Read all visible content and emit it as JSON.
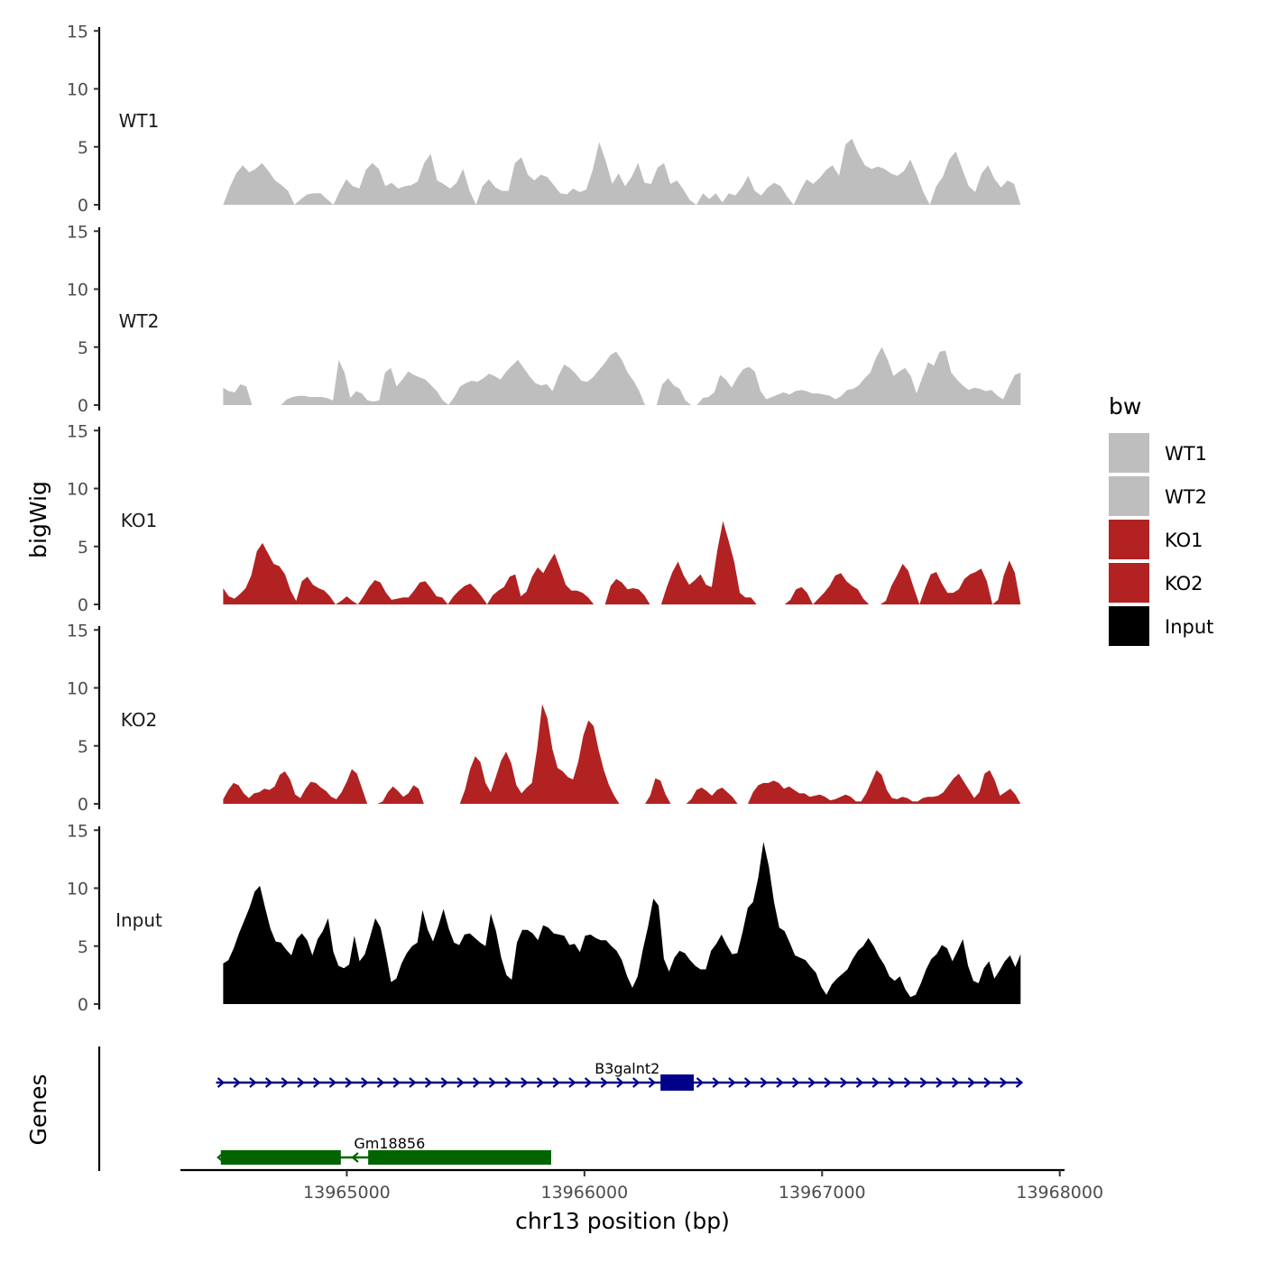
{
  "chart_data": {
    "type": "area",
    "xlabel": "chr13 position (bp)",
    "ylabel_tracks": "bigWig",
    "ylabel_genes": "Genes",
    "xlim": [
      13964300,
      13968020
    ],
    "xticks": [
      13965000,
      13966000,
      13967000,
      13968000
    ],
    "xtick_labels": [
      "13965000",
      "13966000",
      "13967000",
      "13968000"
    ],
    "ylim": [
      0,
      15
    ],
    "yticks": [
      0,
      5,
      10,
      15
    ],
    "ytick_labels": [
      "0",
      "5",
      "10",
      "15"
    ],
    "track_x_start": 13964480,
    "track_x_end": 13967835,
    "legend": {
      "title": "bw",
      "entries": [
        {
          "name": "WT1",
          "color": "#bebebe"
        },
        {
          "name": "WT2",
          "color": "#bebebe"
        },
        {
          "name": "KO1",
          "color": "#b22222"
        },
        {
          "name": "KO2",
          "color": "#b22222"
        },
        {
          "name": "Input",
          "color": "#000000"
        }
      ]
    },
    "series": [
      {
        "name": "WT1",
        "color": "#bebebe",
        "values": [
          0,
          1.5,
          2.7,
          3.4,
          2.8,
          3.1,
          3.6,
          2.9,
          2.1,
          1.7,
          1.2,
          0,
          0.5,
          0.9,
          1.0,
          1.0,
          0.5,
          0,
          1.2,
          2.2,
          1.6,
          1.4,
          3.0,
          3.6,
          3.1,
          1.6,
          1.9,
          1.4,
          1.6,
          1.7,
          2.0,
          3.6,
          4.4,
          2.1,
          1.8,
          1.4,
          1.9,
          3.1,
          1.2,
          0,
          1.6,
          2.2,
          1.5,
          1.2,
          1.2,
          3.6,
          4.1,
          2.6,
          2.1,
          2.6,
          2.4,
          1.7,
          1.0,
          0.9,
          1.4,
          1.1,
          1.3,
          3.0,
          5.4,
          3.8,
          1.8,
          2.7,
          1.6,
          2.4,
          3.6,
          1.9,
          1.8,
          3.2,
          3.6,
          1.8,
          2.1,
          1.3,
          0.4,
          0,
          1.0,
          0.5,
          1.0,
          0.2,
          1.0,
          0.8,
          1.5,
          2.5,
          1.2,
          0.8,
          1.5,
          1.9,
          1.6,
          0.7,
          0,
          1.2,
          2.2,
          1.8,
          2.3,
          3.0,
          3.4,
          2.5,
          5.2,
          5.7,
          4.4,
          3.4,
          3.1,
          3.3,
          3.1,
          2.7,
          2.5,
          2.9,
          3.9,
          2.6,
          1.1,
          0,
          1.6,
          2.4,
          3.9,
          4.6,
          3.1,
          1.6,
          1.1,
          2.7,
          3.4,
          2.2,
          1.5,
          2.1,
          1.8,
          0
        ]
      },
      {
        "name": "WT2",
        "color": "#bebebe",
        "values": [
          1.5,
          1.2,
          1.1,
          1.8,
          1.6,
          0,
          0,
          0,
          0,
          0,
          0,
          0.5,
          0.7,
          0.8,
          0.8,
          0.7,
          0.7,
          0.7,
          0.6,
          0.4,
          3.9,
          2.8,
          0.6,
          1.2,
          1.0,
          0.4,
          0.3,
          0.4,
          2.8,
          3.2,
          1.6,
          2.2,
          2.9,
          2.6,
          2.4,
          2.2,
          1.7,
          1.2,
          0.4,
          0,
          0.7,
          1.6,
          1.9,
          2.1,
          2.0,
          2.3,
          2.7,
          2.5,
          2.2,
          2.9,
          3.4,
          3.9,
          3.2,
          2.5,
          1.9,
          1.7,
          1.8,
          1.2,
          2.5,
          3.5,
          3.2,
          2.7,
          2.1,
          2.0,
          2.4,
          3.0,
          3.6,
          4.3,
          4.6,
          3.9,
          2.8,
          2.1,
          1.2,
          0,
          0,
          0,
          1.8,
          2.3,
          1.7,
          1.4,
          0.4,
          0,
          0,
          0.6,
          0.7,
          1.1,
          2.6,
          2.2,
          1.5,
          2.4,
          3.1,
          3.3,
          2.9,
          1.2,
          0.5,
          0.7,
          0.9,
          1.1,
          0.9,
          1.2,
          1.3,
          1.2,
          1.0,
          1.0,
          0.9,
          0.8,
          0.5,
          0.8,
          1.3,
          1.4,
          1.7,
          2.3,
          2.8,
          4.1,
          5.0,
          3.9,
          2.5,
          2.9,
          3.2,
          2.5,
          1.0,
          2.4,
          3.7,
          3.4,
          4.6,
          4.7,
          2.8,
          2.2,
          1.7,
          1.3,
          1.5,
          1.4,
          1.2,
          1.3,
          0.8,
          0.5,
          1.6,
          2.6,
          2.8
        ]
      },
      {
        "name": "KO1",
        "color": "#b22222",
        "values": [
          1.4,
          0.7,
          0.5,
          0.9,
          1.4,
          2.5,
          4.6,
          5.3,
          4.4,
          3.5,
          3.3,
          2.6,
          1.2,
          0.3,
          2.0,
          2.4,
          1.7,
          1.4,
          1.2,
          0.7,
          0,
          0.3,
          0.7,
          0.3,
          0,
          0.7,
          1.5,
          2.1,
          1.9,
          1.0,
          0.4,
          0.5,
          0.6,
          0.6,
          1.2,
          1.9,
          2.0,
          1.4,
          0.7,
          0.6,
          0,
          0.7,
          1.2,
          1.6,
          1.8,
          1.3,
          0.7,
          0,
          0.8,
          1.2,
          1.5,
          2.4,
          2.6,
          0.7,
          1.1,
          2.4,
          3.2,
          2.7,
          3.6,
          4.4,
          3.1,
          1.7,
          1.2,
          1.2,
          1.0,
          0.6,
          0,
          0,
          0,
          1.6,
          2.2,
          1.9,
          1.3,
          1.4,
          1.3,
          0.8,
          0,
          0,
          0,
          1.5,
          2.8,
          3.7,
          2.5,
          1.7,
          2.1,
          2.6,
          1.7,
          1.5,
          4.7,
          7.2,
          5.5,
          3.7,
          1.0,
          0.6,
          0.6,
          0,
          0,
          0,
          0,
          0,
          0,
          0.4,
          1.3,
          1.5,
          1.0,
          0,
          0.5,
          1.0,
          1.6,
          2.5,
          2.7,
          2.0,
          1.6,
          1.3,
          0.5,
          0,
          0,
          0,
          0.3,
          1.6,
          2.5,
          3.5,
          2.9,
          1.4,
          0,
          1.4,
          2.6,
          2.8,
          1.8,
          1.0,
          1.0,
          1.3,
          2.2,
          2.6,
          2.8,
          3.1,
          2.0,
          0,
          0.4,
          2.5,
          3.8,
          2.7,
          0
        ]
      },
      {
        "name": "KO2",
        "color": "#b22222",
        "values": [
          0.4,
          1.2,
          1.8,
          1.6,
          0.9,
          0.5,
          0.9,
          1.0,
          1.3,
          1.2,
          1.5,
          2.5,
          2.8,
          2.1,
          0.8,
          0.5,
          1.3,
          1.9,
          1.8,
          1.4,
          1.1,
          0.6,
          0.4,
          1.0,
          1.9,
          3.0,
          2.6,
          1.3,
          0,
          0,
          0,
          0.2,
          1.0,
          1.5,
          1.1,
          0.6,
          0.9,
          1.6,
          1.3,
          0,
          0,
          0,
          0,
          0,
          0,
          0,
          0,
          1.2,
          3.0,
          4.1,
          3.6,
          1.8,
          1.0,
          2.3,
          3.7,
          4.5,
          3.5,
          1.6,
          0.9,
          1.4,
          1.8,
          4.7,
          8.6,
          7.4,
          4.7,
          3.1,
          2.8,
          2.3,
          2.1,
          3.6,
          5.9,
          7.2,
          6.7,
          4.6,
          2.9,
          1.6,
          0.7,
          0,
          0,
          0,
          0,
          0,
          0,
          0.7,
          2.2,
          2.0,
          0.8,
          0,
          0,
          0,
          0,
          0.4,
          1.2,
          1.4,
          1.1,
          0.7,
          1.2,
          1.4,
          1.0,
          0.6,
          0,
          0,
          0,
          1.0,
          1.6,
          1.8,
          1.8,
          2.0,
          1.8,
          1.3,
          1.5,
          1.2,
          0.9,
          0.9,
          0.6,
          0.7,
          0.8,
          0.6,
          0.3,
          0.4,
          0.6,
          0.8,
          0.6,
          0.2,
          0.2,
          0.9,
          1.9,
          2.9,
          2.5,
          1.2,
          0.5,
          0.4,
          0.6,
          0.5,
          0.2,
          0.2,
          0.5,
          0.6,
          0.6,
          0.7,
          1.0,
          1.6,
          2.2,
          2.6,
          1.9,
          1.2,
          0.5,
          1.0,
          2.6,
          2.9,
          2.0,
          0.7,
          1.0,
          1.3,
          0.8,
          0
        ]
      },
      {
        "name": "Input",
        "color": "#000000",
        "values": [
          3.5,
          3.8,
          4.8,
          6.1,
          7.2,
          8.3,
          9.7,
          10.2,
          8.3,
          6.5,
          5.4,
          5.3,
          4.7,
          4.2,
          5.6,
          6.1,
          5.5,
          4.2,
          5.6,
          6.3,
          7.4,
          4.5,
          3.3,
          3.1,
          3.4,
          5.9,
          3.7,
          4.3,
          5.8,
          7.4,
          6.6,
          4.4,
          1.9,
          2.2,
          3.5,
          4.4,
          5.0,
          5.3,
          8.1,
          6.4,
          5.4,
          6.7,
          8.2,
          6.5,
          5.3,
          5.1,
          6.0,
          6.1,
          5.7,
          5.3,
          5.0,
          7.8,
          6.3,
          4.0,
          2.5,
          2.1,
          5.3,
          6.4,
          6.4,
          6.1,
          5.5,
          6.8,
          6.6,
          6.1,
          6.0,
          5.9,
          5.1,
          5.2,
          4.5,
          5.9,
          6.0,
          5.7,
          5.5,
          5.5,
          5.0,
          4.6,
          3.8,
          2.4,
          1.4,
          2.4,
          4.7,
          6.7,
          9.1,
          8.5,
          3.9,
          2.8,
          4.0,
          4.6,
          4.4,
          3.8,
          3.3,
          3.0,
          3.0,
          4.6,
          5.2,
          6.0,
          5.1,
          4.3,
          4.4,
          6.2,
          8.3,
          8.8,
          10.9,
          14.0,
          11.9,
          8.8,
          6.6,
          6.3,
          5.3,
          4.2,
          4.0,
          3.8,
          3.2,
          2.7,
          1.5,
          0.8,
          1.7,
          2.2,
          2.6,
          3.0,
          3.9,
          4.6,
          5.0,
          5.7,
          5.0,
          4.1,
          3.4,
          2.4,
          2.0,
          2.4,
          1.3,
          0.6,
          0.8,
          1.8,
          3.0,
          3.9,
          4.3,
          5.1,
          4.8,
          3.7,
          4.6,
          5.6,
          3.3,
          2.0,
          1.8,
          3.1,
          3.7,
          2.2,
          2.9,
          3.7,
          4.2,
          3.2,
          4.3
        ]
      }
    ],
    "genes": [
      {
        "name": "B3galnt2",
        "strand": "+",
        "start": 13964450,
        "end": 13967840,
        "exon_start": 13966320,
        "exon_end": 13966460,
        "color": "#00008b",
        "label_pos": 13966180
      },
      {
        "name": "Gm18856",
        "strand": "-",
        "start": 13964470,
        "end": 13965860,
        "exons": [
          [
            13964470,
            13964975
          ],
          [
            13965090,
            13965860
          ]
        ],
        "color": "#006400",
        "label_pos": 13965180
      }
    ]
  }
}
